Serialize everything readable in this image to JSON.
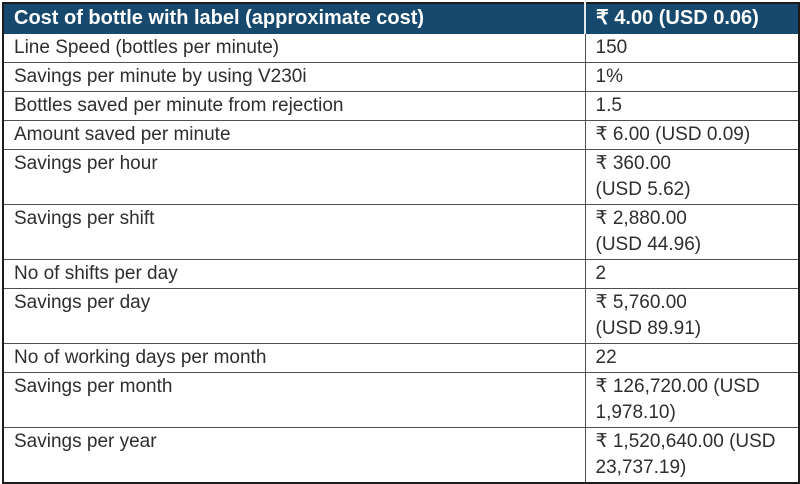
{
  "colors": {
    "header_bg": "#17496e",
    "header_text": "#ffffff",
    "body_text": "#2e2e2e",
    "inner_border": "#4f4f4f",
    "outer_border": "#1c1c1c"
  },
  "table": {
    "header": {
      "label": "Cost of bottle with label (approximate cost)",
      "value": "₹ 4.00 (USD 0.06)"
    },
    "rows": [
      {
        "label": "Line Speed (bottles per minute)",
        "value": "150"
      },
      {
        "label": "Savings per minute by using V230i",
        "value": "1%"
      },
      {
        "label": "Bottles saved per minute from rejection",
        "value": "1.5"
      },
      {
        "label": "Amount saved per minute",
        "value": "₹ 6.00 (USD 0.09)"
      },
      {
        "label": "Savings per hour",
        "value": "₹ 360.00\n(USD 5.62)"
      },
      {
        "label": "Savings per shift",
        "value": "₹ 2,880.00\n(USD 44.96)"
      },
      {
        "label": "No of shifts per day",
        "value": "2"
      },
      {
        "label": "Savings per day",
        "value": "₹ 5,760.00\n(USD 89.91)"
      },
      {
        "label": "No of working days per month",
        "value": "22"
      },
      {
        "label": "Savings per month",
        "value": "₹ 126,720.00 (USD\n1,978.10)"
      },
      {
        "label": "Savings per year",
        "value": "₹ 1,520,640.00 (USD\n23,737.19)"
      }
    ]
  }
}
